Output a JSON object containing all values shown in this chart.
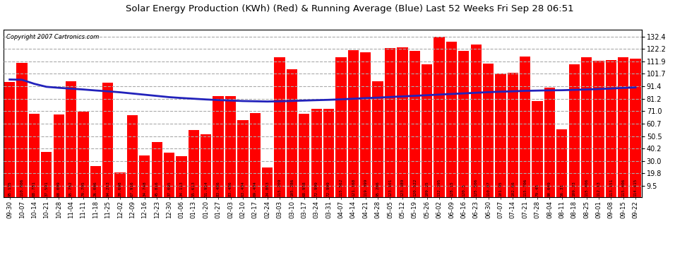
{
  "title": "Solar Energy Production (KWh) (Red) & Running Average (Blue) Last 52 Weeks Fri Sep 28 06:51",
  "copyright": "Copyright 2007 Cartronics.com",
  "bar_color": "#FF0000",
  "line_color": "#2222BB",
  "bg_color": "#FFFFFF",
  "plot_bg": "#FFFFFF",
  "grid_color": "#AAAAAA",
  "yticks": [
    9.5,
    19.8,
    30.0,
    40.2,
    50.5,
    60.7,
    71.0,
    81.2,
    91.4,
    101.7,
    111.9,
    122.2,
    132.4
  ],
  "dates": [
    "09-30",
    "10-07",
    "10-14",
    "10-21",
    "10-28",
    "11-04",
    "11-11",
    "11-18",
    "11-25",
    "12-02",
    "12-09",
    "12-16",
    "12-23",
    "12-30",
    "01-06",
    "01-13",
    "01-20",
    "01-27",
    "02-03",
    "02-10",
    "02-17",
    "02-24",
    "03-03",
    "03-10",
    "03-17",
    "03-24",
    "03-31",
    "04-07",
    "04-14",
    "04-21",
    "04-28",
    "05-05",
    "05-12",
    "05-19",
    "05-26",
    "06-02",
    "06-09",
    "06-16",
    "06-23",
    "06-30",
    "07-07",
    "07-14",
    "07-21",
    "07-28",
    "08-04",
    "08-11",
    "08-18",
    "08-25",
    "09-01",
    "09-08",
    "09-15",
    "09-22"
  ],
  "bar_values": [
    95.135,
    110.606,
    68.781,
    37.591,
    68.099,
    95.752,
    70.705,
    26.086,
    94.213,
    20.698,
    67.916,
    34.748,
    45.816,
    37.095,
    34.113,
    55.613,
    51.954,
    83.486,
    83.486,
    63.404,
    69.404,
    24.863,
    115.209,
    105.286,
    68.958,
    72.999,
    72.999,
    115.562,
    121.168,
    119.399,
    95.286,
    123.101,
    123.389,
    120.522,
    109.25,
    132.395,
    128.15,
    120.5,
    125.506,
    110.07,
    101.95,
    102.66,
    115.706,
    79.45,
    90.049,
    56.31,
    109.23,
    115.406,
    112.13,
    113.151,
    115.406,
    114.415
  ],
  "avg_values": [
    97.0,
    96.8,
    93.5,
    91.0,
    90.2,
    89.5,
    88.8,
    88.0,
    87.3,
    86.5,
    85.5,
    84.5,
    83.5,
    82.5,
    81.8,
    81.2,
    80.6,
    80.1,
    79.7,
    79.3,
    79.1,
    78.9,
    79.1,
    79.4,
    79.7,
    80.0,
    80.3,
    80.7,
    81.2,
    81.7,
    82.1,
    82.6,
    83.1,
    83.6,
    84.1,
    84.6,
    85.1,
    85.6,
    86.1,
    86.6,
    87.0,
    87.3,
    87.7,
    87.9,
    88.1,
    88.2,
    88.5,
    88.8,
    89.2,
    89.6,
    90.1,
    90.5
  ],
  "ymin": 0,
  "ymax": 138.0,
  "title_fontsize": 9.5,
  "copyright_fontsize": 6.0,
  "tick_fontsize": 7.0,
  "label_fontsize": 4.3,
  "xtick_fontsize": 6.2
}
